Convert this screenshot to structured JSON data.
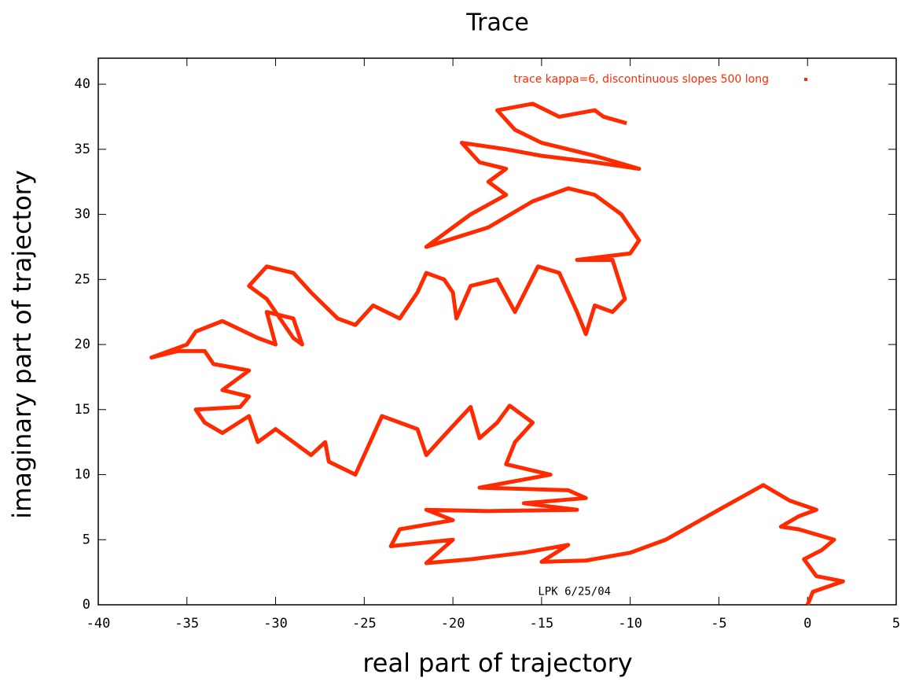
{
  "chart_data": {
    "type": "line",
    "title": "Trace",
    "x_label": "real part of trajectory",
    "y_label": "imaginary part of trajectory",
    "annotation": "LPK 6/25/04",
    "legend": "upper right",
    "xlim": [
      -40,
      5
    ],
    "xticks": [
      -40,
      -35,
      -30,
      -25,
      -20,
      -15,
      -10,
      -5,
      0,
      5
    ],
    "ylim": [
      0,
      42
    ],
    "yticks": [
      0,
      5,
      10,
      15,
      20,
      25,
      30,
      35,
      40
    ],
    "x": [
      0,
      0.3,
      2,
      0.5,
      -0.2,
      0.8,
      1.5,
      -0.5,
      -1.5,
      -0.5,
      0.5,
      -1,
      -2.5,
      -5,
      -8,
      -10,
      -12.5,
      -15,
      -13.5,
      -16,
      -19,
      -21.5,
      -20,
      -23.5,
      -23,
      -20,
      -21.5,
      -18,
      -13,
      -16,
      -12.5,
      -13.5,
      -18.5,
      -14.5,
      -17,
      -16.5,
      -15.5,
      -16.8,
      -17.5,
      -18.5,
      -19,
      -20.5,
      -21.5,
      -22,
      -24,
      -25.5,
      -27,
      -27.2,
      -28,
      -29,
      -30,
      -31,
      -31.5,
      -33,
      -34,
      -34.5,
      -32,
      -31.5,
      -33,
      -31.5,
      -33.5,
      -34,
      -35.5,
      -37,
      -35,
      -34.5,
      -33,
      -31,
      -30,
      -30.5,
      -29,
      -28.5,
      -29,
      -29.5,
      -30.5,
      -31.5,
      -30.5,
      -29,
      -28,
      -26.5,
      -25.5,
      -24.5,
      -23,
      -22,
      -21.5,
      -20.5,
      -20,
      -19.8,
      -19,
      -17.5,
      -16.5,
      -15.2,
      -14,
      -13,
      -12.5,
      -12,
      -11,
      -10.3,
      -11,
      -13,
      -10,
      -9.5,
      -10.5,
      -12,
      -13.5,
      -15.5,
      -18,
      -21.5,
      -19,
      -17,
      -18,
      -17,
      -18.5,
      -19.5,
      -17,
      -15,
      -12,
      -9.5,
      -12,
      -15,
      -16.5,
      -17.5,
      -15.5,
      -14,
      -12,
      -11.5,
      -10.2
    ],
    "series": [
      {
        "name": "trace kappa=6, discontinuous slopes 500 long",
        "color": "#ff2a00",
        "values": [
          0,
          1,
          1.8,
          2.2,
          3.5,
          4.2,
          5,
          5.8,
          6,
          6.8,
          7.3,
          8,
          9.2,
          7.3,
          5,
          4,
          3.4,
          3.3,
          4.6,
          4,
          3.5,
          3.2,
          5,
          4.5,
          5.8,
          6.5,
          7.3,
          7.2,
          7.3,
          7.8,
          8.2,
          8.8,
          9,
          10,
          10.8,
          12.5,
          14,
          15.3,
          14,
          12.8,
          15.2,
          13,
          11.5,
          13.5,
          14.5,
          10,
          11,
          12.5,
          11.5,
          12.5,
          13.5,
          12.5,
          14.5,
          13.2,
          14,
          15,
          15.2,
          16,
          16.5,
          18,
          18.5,
          19.5,
          19.5,
          19,
          20,
          21,
          21.8,
          20.5,
          20,
          22.5,
          22,
          20,
          20.5,
          21.5,
          23.5,
          24.5,
          26,
          25.5,
          24,
          22,
          21.5,
          23,
          22,
          24,
          25.5,
          25,
          24,
          22,
          24.5,
          25,
          22.5,
          26,
          25.5,
          22.5,
          20.8,
          23,
          22.5,
          23.5,
          26.5,
          26.5,
          27,
          28,
          30,
          31.5,
          32,
          31,
          29,
          27.5,
          30,
          31.5,
          32.5,
          33.5,
          34,
          35.5,
          35,
          34.5,
          34,
          33.5,
          34.5,
          35.5,
          36.5,
          38,
          38.5,
          37.5,
          38,
          37.5,
          37
        ]
      }
    ]
  }
}
